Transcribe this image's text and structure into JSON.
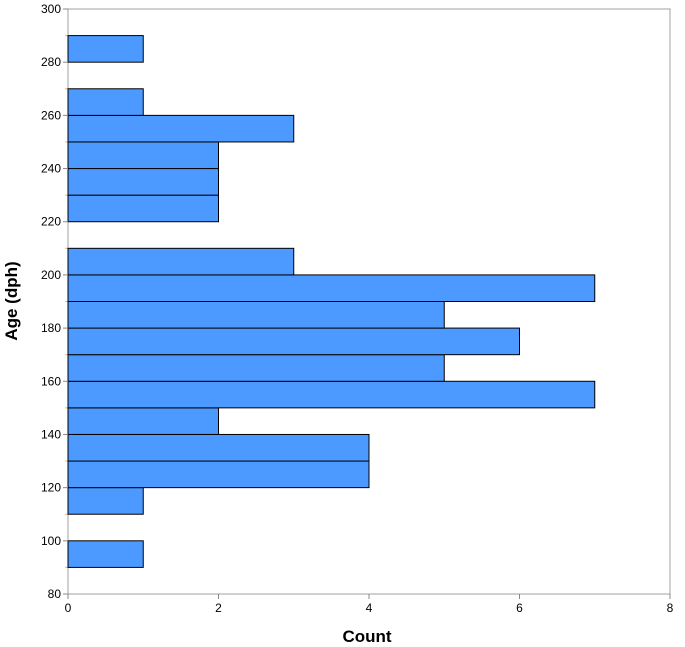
{
  "chart_data": {
    "type": "bar",
    "orientation": "horizontal",
    "title": "",
    "xlabel": "Count",
    "ylabel": "Age (dph)",
    "xlim": [
      0,
      8
    ],
    "ylim": [
      80,
      300
    ],
    "x_ticks": [
      0,
      2,
      4,
      6,
      8
    ],
    "y_ticks": [
      80,
      100,
      120,
      140,
      160,
      180,
      200,
      220,
      240,
      260,
      280,
      300
    ],
    "grid": false,
    "legend": "none",
    "bar_color": "#4c9aff",
    "bar_edge_color": "#000000",
    "bins": [
      {
        "from": 90,
        "to": 100,
        "count": 1
      },
      {
        "from": 100,
        "to": 110,
        "count": 0
      },
      {
        "from": 110,
        "to": 120,
        "count": 1
      },
      {
        "from": 120,
        "to": 130,
        "count": 4
      },
      {
        "from": 130,
        "to": 140,
        "count": 4
      },
      {
        "from": 140,
        "to": 150,
        "count": 2
      },
      {
        "from": 150,
        "to": 160,
        "count": 7
      },
      {
        "from": 160,
        "to": 170,
        "count": 5
      },
      {
        "from": 170,
        "to": 180,
        "count": 6
      },
      {
        "from": 180,
        "to": 190,
        "count": 5
      },
      {
        "from": 190,
        "to": 200,
        "count": 7
      },
      {
        "from": 200,
        "to": 210,
        "count": 3
      },
      {
        "from": 210,
        "to": 220,
        "count": 0
      },
      {
        "from": 220,
        "to": 230,
        "count": 2
      },
      {
        "from": 230,
        "to": 240,
        "count": 2
      },
      {
        "from": 240,
        "to": 250,
        "count": 2
      },
      {
        "from": 250,
        "to": 260,
        "count": 3
      },
      {
        "from": 260,
        "to": 270,
        "count": 1
      },
      {
        "from": 270,
        "to": 280,
        "count": 0
      },
      {
        "from": 280,
        "to": 290,
        "count": 1
      }
    ]
  }
}
